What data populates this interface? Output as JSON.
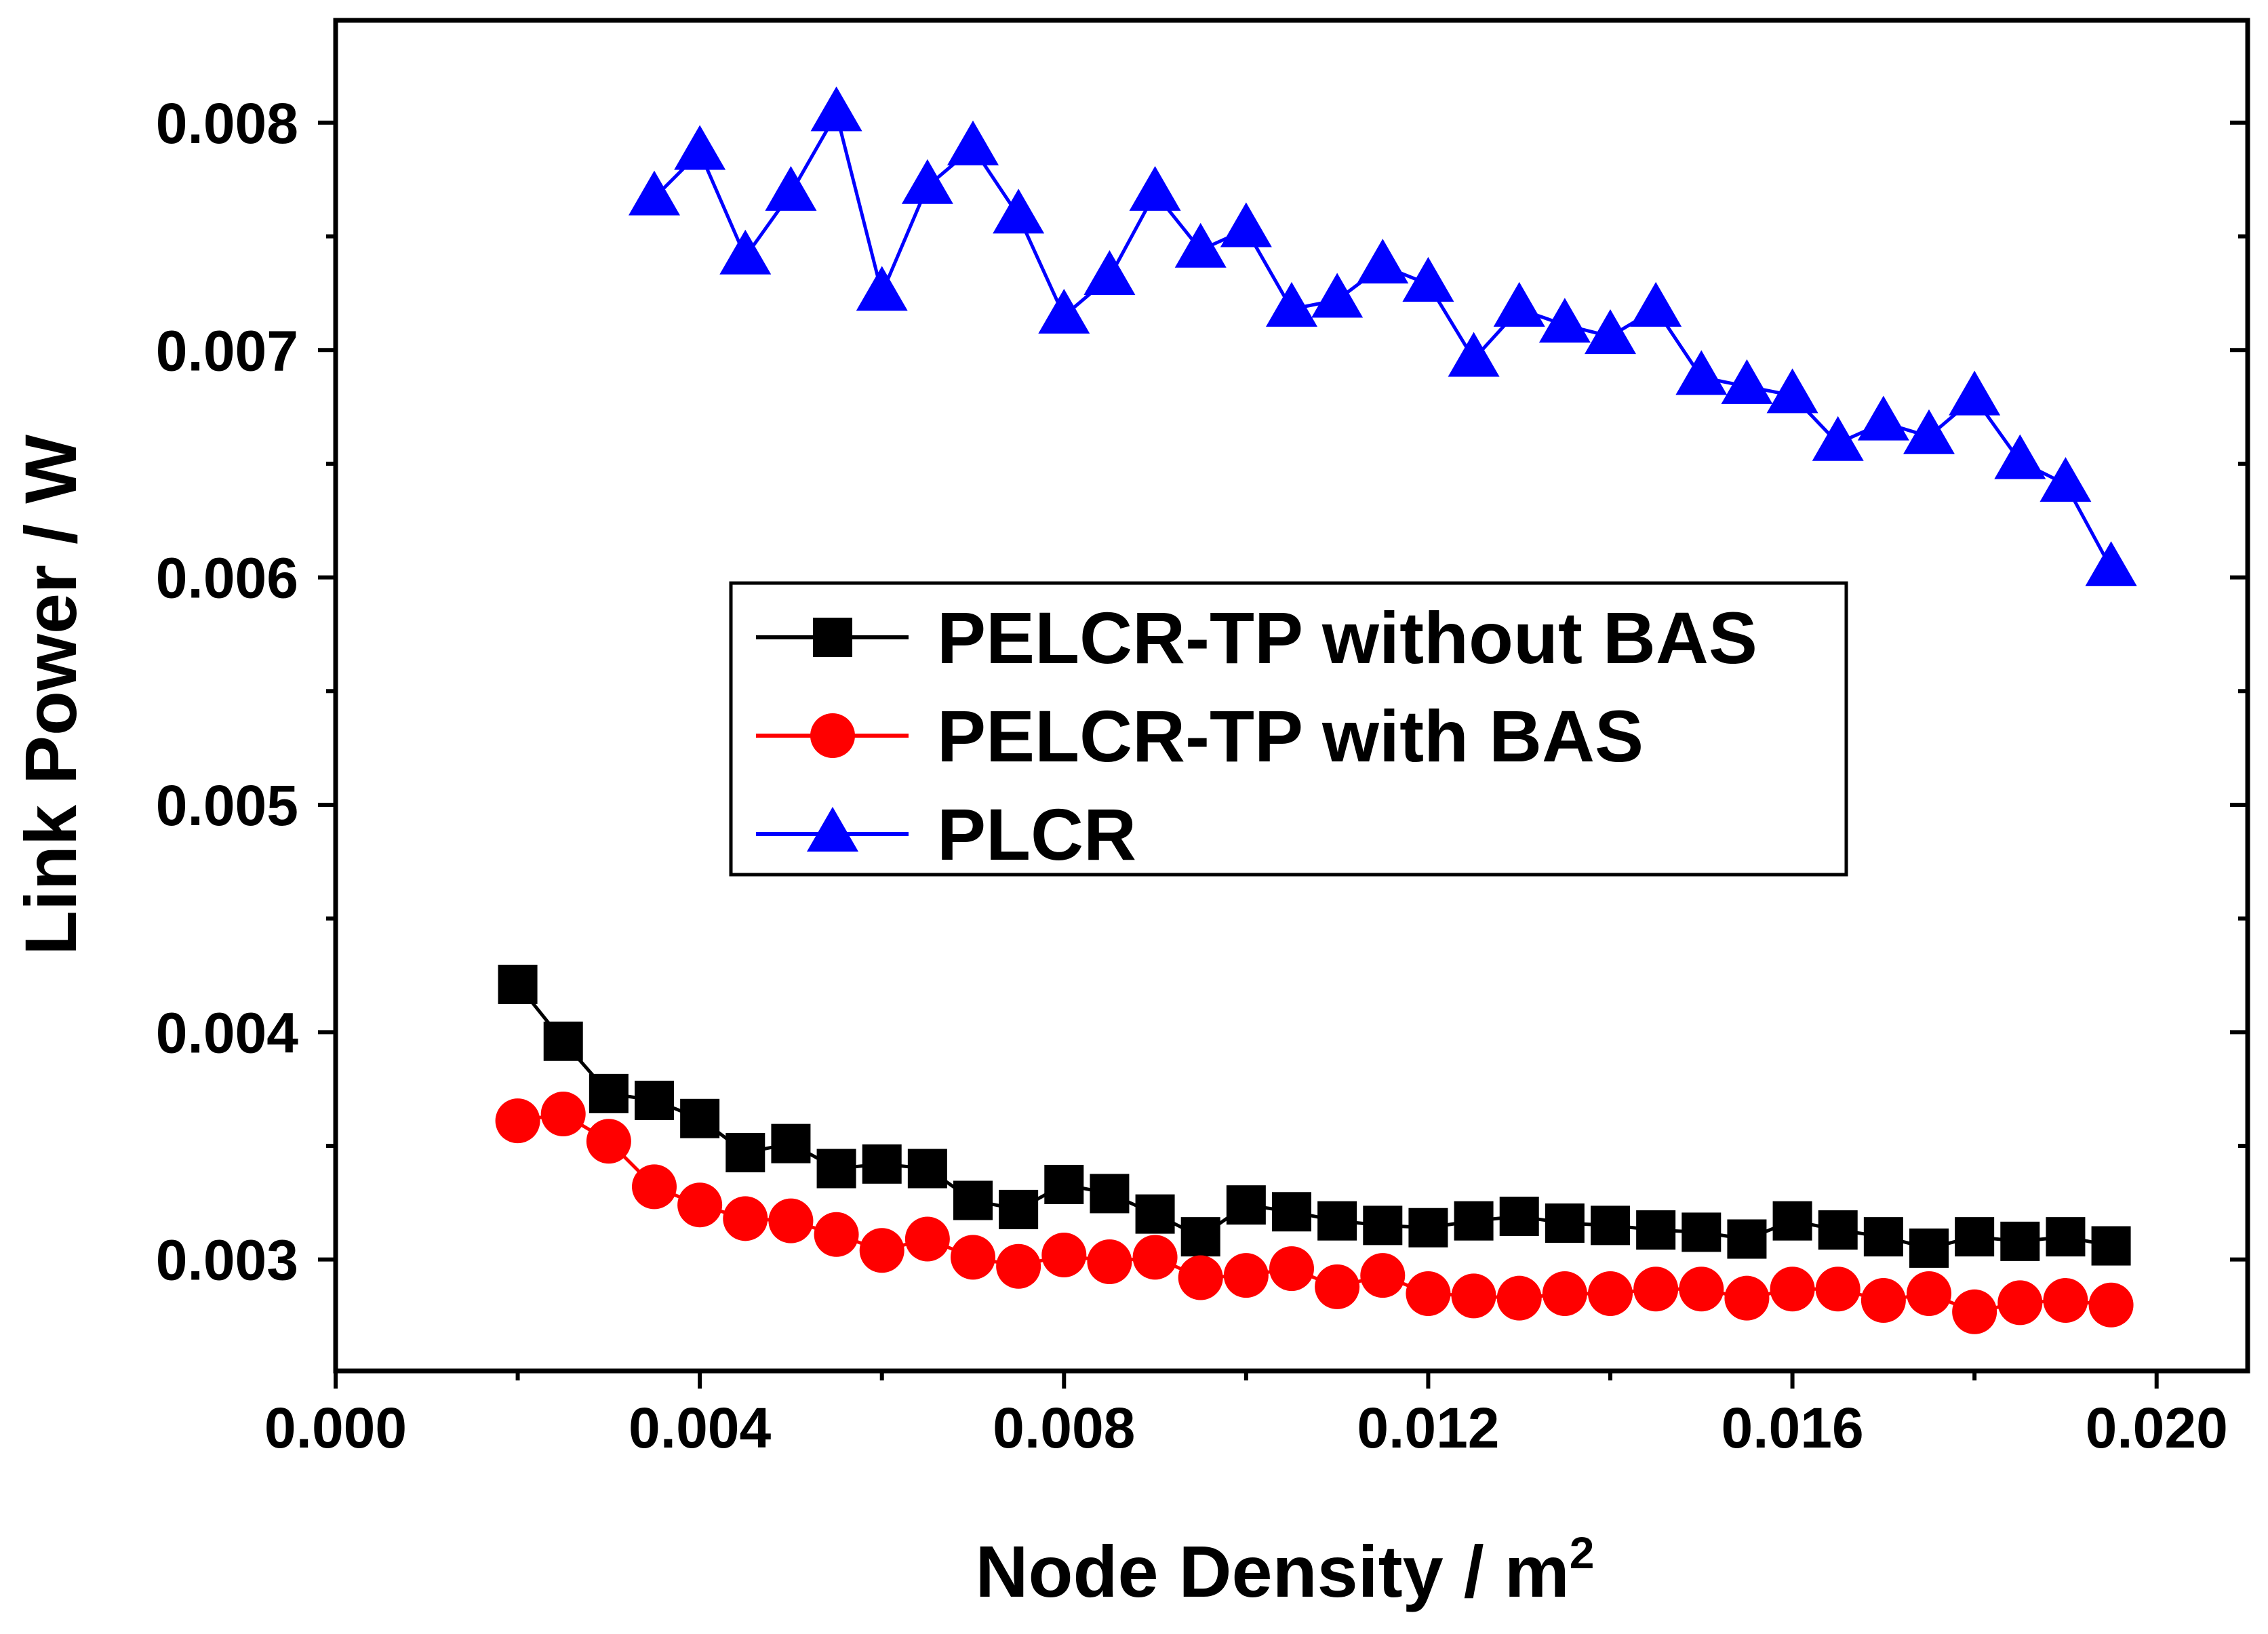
{
  "chart_data": {
    "type": "line",
    "title": "",
    "xlabel": "Node Density / m",
    "xlabel_superscript": "2",
    "ylabel": "Link Power / W",
    "xlim": [
      0,
      0.021
    ],
    "ylim": [
      0.00251,
      0.00845
    ],
    "x_ticks": [
      0.0,
      0.004,
      0.008,
      0.012,
      0.016,
      0.02
    ],
    "x_tick_labels": [
      "0.000",
      "0.004",
      "0.008",
      "0.012",
      "0.016",
      "0.020"
    ],
    "y_ticks": [
      0.003,
      0.004,
      0.005,
      0.006,
      0.007,
      0.008
    ],
    "y_tick_labels": [
      "0.003",
      "0.004",
      "0.005",
      "0.006",
      "0.007",
      "0.008"
    ],
    "grid": false,
    "legend_position": "center",
    "series": [
      {
        "name": "PELCR-TP without BAS",
        "color": "#000000",
        "marker": "square",
        "x": [
          0.002,
          0.0025,
          0.003,
          0.0035,
          0.004,
          0.0045,
          0.005,
          0.0055,
          0.006,
          0.0065,
          0.007,
          0.0075,
          0.008,
          0.0085,
          0.009,
          0.0095,
          0.01,
          0.0105,
          0.011,
          0.0115,
          0.012,
          0.0125,
          0.013,
          0.0135,
          0.014,
          0.0145,
          0.015,
          0.0155,
          0.016,
          0.0165,
          0.017,
          0.0175,
          0.018,
          0.0185,
          0.019,
          0.0195
        ],
        "y": [
          0.00421,
          0.00396,
          0.00373,
          0.0037,
          0.00362,
          0.00347,
          0.00351,
          0.0034,
          0.00342,
          0.0034,
          0.00326,
          0.00322,
          0.00333,
          0.00329,
          0.0032,
          0.0031,
          0.00324,
          0.00321,
          0.00317,
          0.00315,
          0.00314,
          0.00317,
          0.00319,
          0.00316,
          0.00315,
          0.00313,
          0.00312,
          0.00309,
          0.00317,
          0.00313,
          0.0031,
          0.00305,
          0.0031,
          0.00308,
          0.0031,
          0.00306
        ]
      },
      {
        "name": "PELCR-TP with BAS",
        "color": "#ff0000",
        "marker": "circle",
        "x": [
          0.002,
          0.0025,
          0.003,
          0.0035,
          0.004,
          0.0045,
          0.005,
          0.0055,
          0.006,
          0.0065,
          0.007,
          0.0075,
          0.008,
          0.0085,
          0.009,
          0.0095,
          0.01,
          0.0105,
          0.011,
          0.0115,
          0.012,
          0.0125,
          0.013,
          0.0135,
          0.014,
          0.0145,
          0.015,
          0.0155,
          0.016,
          0.0165,
          0.017,
          0.0175,
          0.018,
          0.0185,
          0.019,
          0.0195
        ],
        "y": [
          0.00361,
          0.00364,
          0.00352,
          0.00332,
          0.00324,
          0.00318,
          0.00317,
          0.00311,
          0.00304,
          0.00309,
          0.00301,
          0.00297,
          0.00302,
          0.00299,
          0.00301,
          0.00292,
          0.00293,
          0.00296,
          0.00288,
          0.00293,
          0.00285,
          0.00284,
          0.00283,
          0.00285,
          0.00285,
          0.00287,
          0.00287,
          0.00283,
          0.00287,
          0.00287,
          0.00282,
          0.00285,
          0.00277,
          0.00281,
          0.00282,
          0.0028
        ]
      },
      {
        "name": "PLCR",
        "color": "#0000ff",
        "marker": "triangle",
        "x": [
          0.0035,
          0.004,
          0.0045,
          0.005,
          0.0055,
          0.006,
          0.0065,
          0.007,
          0.0075,
          0.008,
          0.0085,
          0.009,
          0.0095,
          0.01,
          0.0105,
          0.011,
          0.0115,
          0.012,
          0.0125,
          0.013,
          0.0135,
          0.014,
          0.0145,
          0.015,
          0.0155,
          0.016,
          0.0165,
          0.017,
          0.0175,
          0.018,
          0.0185,
          0.019,
          0.0195
        ],
        "y": [
          0.00767,
          0.00787,
          0.00741,
          0.00769,
          0.00804,
          0.00725,
          0.00772,
          0.00789,
          0.00759,
          0.00715,
          0.00732,
          0.00769,
          0.00744,
          0.00753,
          0.00718,
          0.00722,
          0.00737,
          0.00729,
          0.00696,
          0.00718,
          0.00711,
          0.00706,
          0.00718,
          0.00688,
          0.00684,
          0.0068,
          0.00659,
          0.00668,
          0.00662,
          0.00679,
          0.00651,
          0.00641,
          0.00604
        ]
      }
    ]
  }
}
